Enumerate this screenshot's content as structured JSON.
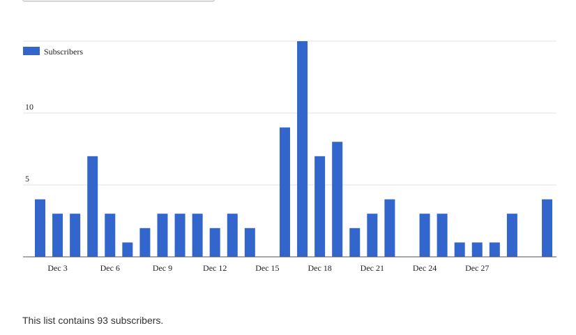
{
  "page": {
    "summary_text": "This list contains 93 subscribers."
  },
  "colors": {
    "bar": "#3366cc",
    "grid": "#e0e0e0",
    "axis": "#555555",
    "text": "#222222"
  },
  "chart_data": {
    "type": "bar",
    "title": "",
    "xlabel": "",
    "ylabel": "",
    "legend_position": "top-left",
    "grid": true,
    "ylim": [
      0,
      15
    ],
    "yticks": [
      {
        "value": 5,
        "label": "5"
      },
      {
        "value": 10,
        "label": "10"
      }
    ],
    "categories": [
      "Dec 2",
      "Dec 3",
      "Dec 4",
      "Dec 5",
      "Dec 6",
      "Dec 7",
      "Dec 8",
      "Dec 9",
      "Dec 10",
      "Dec 11",
      "Dec 12",
      "Dec 13",
      "Dec 14",
      "Dec 15",
      "Dec 16",
      "Dec 17",
      "Dec 18",
      "Dec 19",
      "Dec 20",
      "Dec 21",
      "Dec 22",
      "Dec 23",
      "Dec 24",
      "Dec 25",
      "Dec 26",
      "Dec 27",
      "Dec 28",
      "Dec 29",
      "Dec 30",
      "Dec 31"
    ],
    "xtick_labels": [
      {
        "category": "Dec 3",
        "label": "Dec 3"
      },
      {
        "category": "Dec 6",
        "label": "Dec 6"
      },
      {
        "category": "Dec 9",
        "label": "Dec 9"
      },
      {
        "category": "Dec 12",
        "label": "Dec 12"
      },
      {
        "category": "Dec 15",
        "label": "Dec 15"
      },
      {
        "category": "Dec 18",
        "label": "Dec 18"
      },
      {
        "category": "Dec 21",
        "label": "Dec 21"
      },
      {
        "category": "Dec 24",
        "label": "Dec 24"
      },
      {
        "category": "Dec 27",
        "label": "Dec 27"
      }
    ],
    "series": [
      {
        "name": "Subscribers",
        "values": [
          4,
          3,
          3,
          7,
          3,
          1,
          2,
          3,
          3,
          3,
          2,
          3,
          2,
          0,
          9,
          15,
          7,
          8,
          2,
          3,
          4,
          0,
          3,
          3,
          1,
          1,
          1,
          3,
          0,
          4
        ]
      }
    ]
  }
}
